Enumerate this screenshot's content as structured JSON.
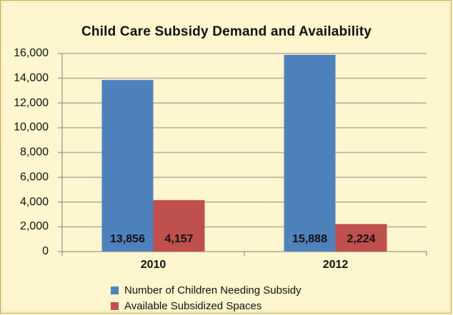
{
  "chart_data": {
    "type": "bar",
    "title": "Child Care Subsidy Demand and Availability",
    "categories": [
      "2010",
      "2012"
    ],
    "series": [
      {
        "name": "Number of Children Needing Subsidy",
        "values": [
          13856,
          15888
        ],
        "labels": [
          "13,856",
          "15,888"
        ],
        "color": "#4f81bd"
      },
      {
        "name": "Available Subsidized Spaces",
        "values": [
          4157,
          2224
        ],
        "labels": [
          "4,157",
          "2,224"
        ],
        "color": "#c0504d"
      }
    ],
    "ylim": [
      0,
      16000
    ],
    "yticks": [
      0,
      2000,
      4000,
      6000,
      8000,
      10000,
      12000,
      14000,
      16000
    ],
    "ytick_labels": [
      "0",
      "2,000",
      "4,000",
      "6,000",
      "8,000",
      "10,000",
      "12,000",
      "14,000",
      "16,000"
    ],
    "grid": true,
    "legend": "bottom"
  }
}
